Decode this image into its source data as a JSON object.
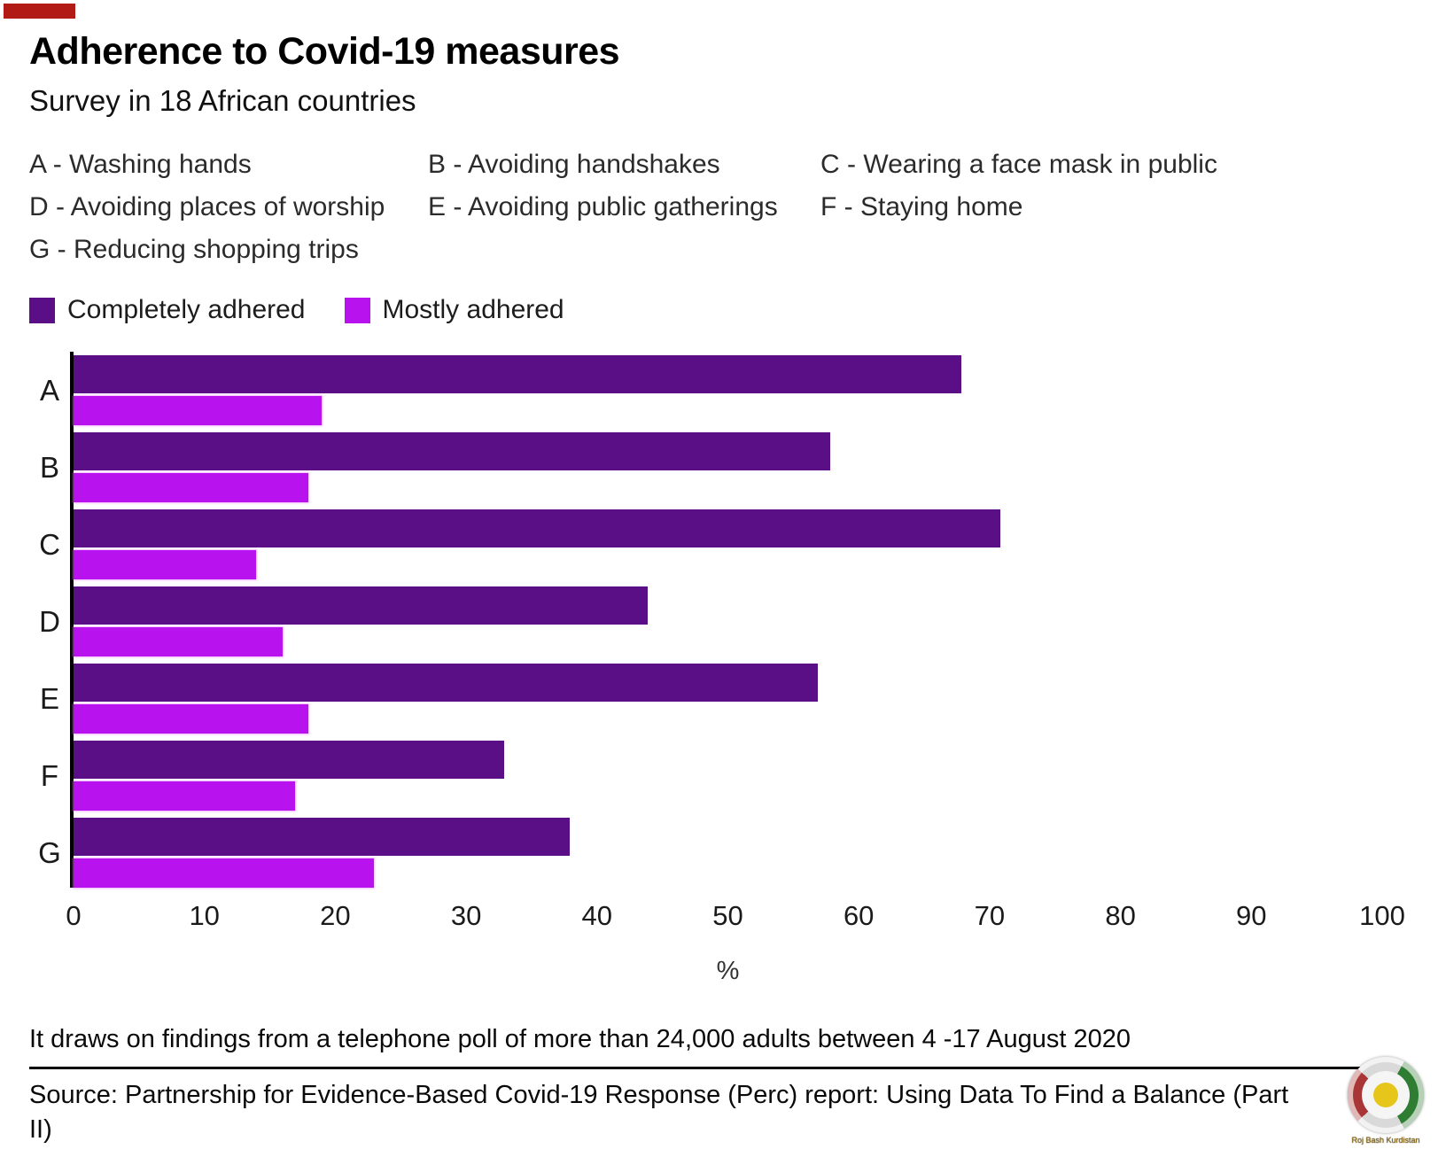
{
  "header": {
    "title": "Adherence to Covid-19 measures",
    "subtitle": "Survey in 18 African countries"
  },
  "measure_key": {
    "items": [
      {
        "code": "A",
        "label": "A - Washing hands"
      },
      {
        "code": "B",
        "label": "B - Avoiding handshakes"
      },
      {
        "code": "C",
        "label": "C - Wearing a face mask in public"
      },
      {
        "code": "D",
        "label": "D - Avoiding places of worship"
      },
      {
        "code": "E",
        "label": "E - Avoiding public gatherings"
      },
      {
        "code": "F",
        "label": "F - Staying home"
      },
      {
        "code": "G",
        "label": "G - Reducing shopping trips"
      }
    ]
  },
  "chart_data": {
    "type": "bar",
    "orientation": "horizontal",
    "title": "Adherence to Covid-19 measures",
    "subtitle": "Survey in 18 African countries",
    "categories": [
      "A",
      "B",
      "C",
      "D",
      "E",
      "F",
      "G"
    ],
    "series": [
      {
        "name": "Completely adhered",
        "color": "#5a0f87",
        "values": [
          68,
          58,
          71,
          44,
          57,
          33,
          38
        ]
      },
      {
        "name": "Mostly adhered",
        "color": "#b813ef",
        "values": [
          19,
          18,
          14,
          16,
          18,
          17,
          23
        ]
      }
    ],
    "xlabel": "%",
    "xlim": [
      0,
      100
    ],
    "xticks": [
      0,
      10,
      20,
      30,
      40,
      50,
      60,
      70,
      80,
      90,
      100
    ],
    "grid": false,
    "legend_position": "top-left"
  },
  "footer": {
    "note": "It draws on findings from a telephone poll of more than 24,000 adults between 4 -17 August 2020",
    "source": "Source: Partnership for Evidence-Based Covid-19 Response (Perc) report: Using Data To Find a Balance (Part II)",
    "logo_caption": "Roj Bash Kurdistan"
  }
}
